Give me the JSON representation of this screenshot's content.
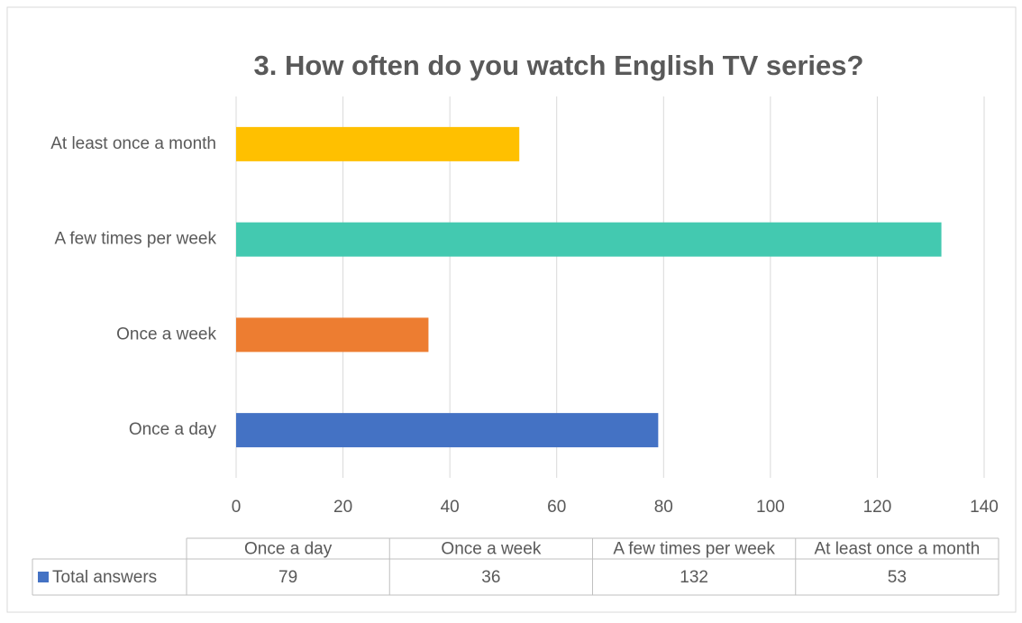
{
  "chart_data": {
    "type": "hbar",
    "title": "3. How often do you watch English TV series?",
    "categories": [
      "Once a day",
      "Once a week",
      "A few times per week",
      "At least once a month"
    ],
    "series": [
      {
        "name": "Total answers",
        "color": "#4472c4",
        "values": [
          79,
          36,
          132,
          53
        ]
      }
    ],
    "colors": [
      "#4472c4",
      "#ed7d31",
      "#43c9b0",
      "#ffc000"
    ],
    "xlim": [
      0,
      140
    ],
    "xticks": [
      0,
      20,
      40,
      60,
      80,
      100,
      120,
      140
    ],
    "grid": true,
    "data_table": true
  }
}
